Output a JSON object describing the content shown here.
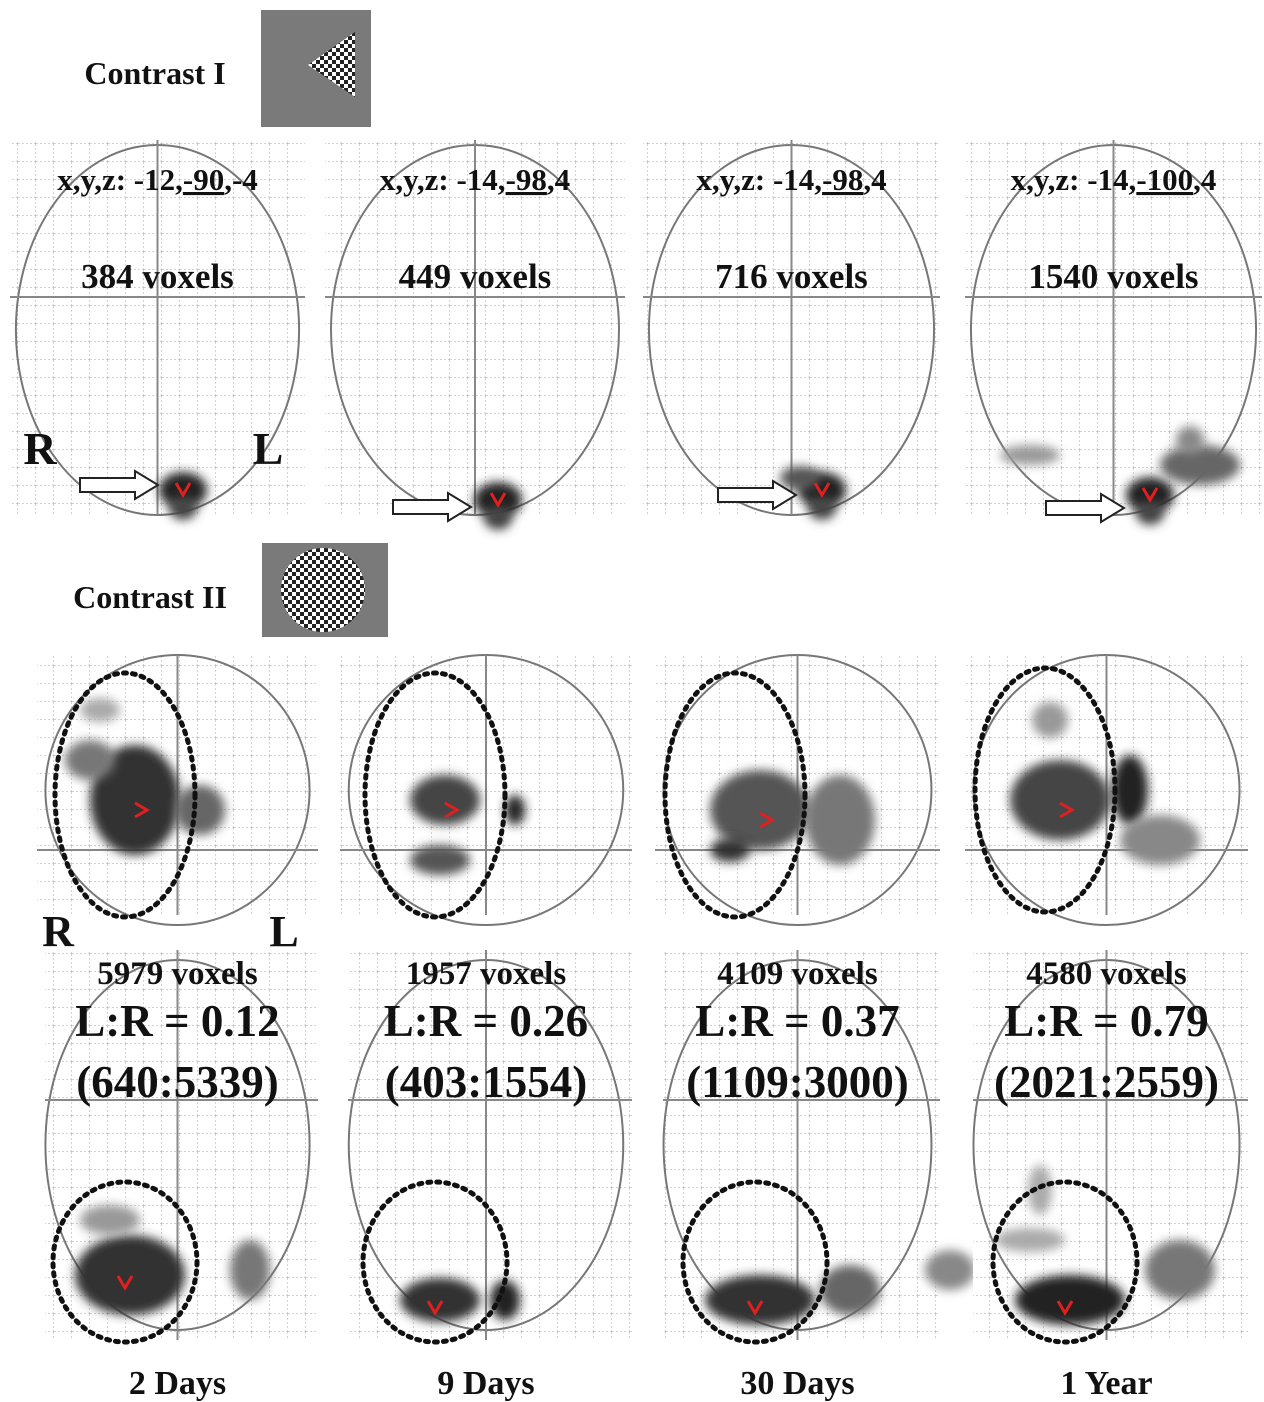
{
  "contrast_1": {
    "label": "Contrast I",
    "side_labels": {
      "right": "R",
      "left": "L"
    },
    "panels": [
      {
        "coords": {
          "prefix": "x,y,z: -12,",
          "y": "-90",
          "suffix": ",-4"
        },
        "voxels": "384 voxels"
      },
      {
        "coords": {
          "prefix": "x,y,z: -14,",
          "y": "-98",
          "suffix": ",4"
        },
        "voxels": "449 voxels"
      },
      {
        "coords": {
          "prefix": "x,y,z: -14,",
          "y": "-98",
          "suffix": ",4"
        },
        "voxels": "716 voxels"
      },
      {
        "coords": {
          "prefix": "x,y,z: -14,",
          "y": "-100",
          "suffix": ",4"
        },
        "voxels": "1540 voxels"
      }
    ]
  },
  "contrast_2": {
    "label": "Contrast II",
    "side_labels": {
      "right": "R",
      "left": "L"
    },
    "panels": [
      {
        "voxels": "5979 voxels",
        "ratio": "L:R = 0.12",
        "counts": "(640:5339)"
      },
      {
        "voxels": "1957 voxels",
        "ratio": "L:R = 0.26",
        "counts": "(403:1554)"
      },
      {
        "voxels": "4109 voxels",
        "ratio": "L:R = 0.37",
        "counts": "(1109:3000)"
      },
      {
        "voxels": "4580 voxels",
        "ratio": "L:R = 0.79",
        "counts": "(2021:2559)"
      }
    ]
  },
  "timepoints": [
    "2 Days",
    "9 Days",
    "30 Days",
    "1 Year"
  ]
}
